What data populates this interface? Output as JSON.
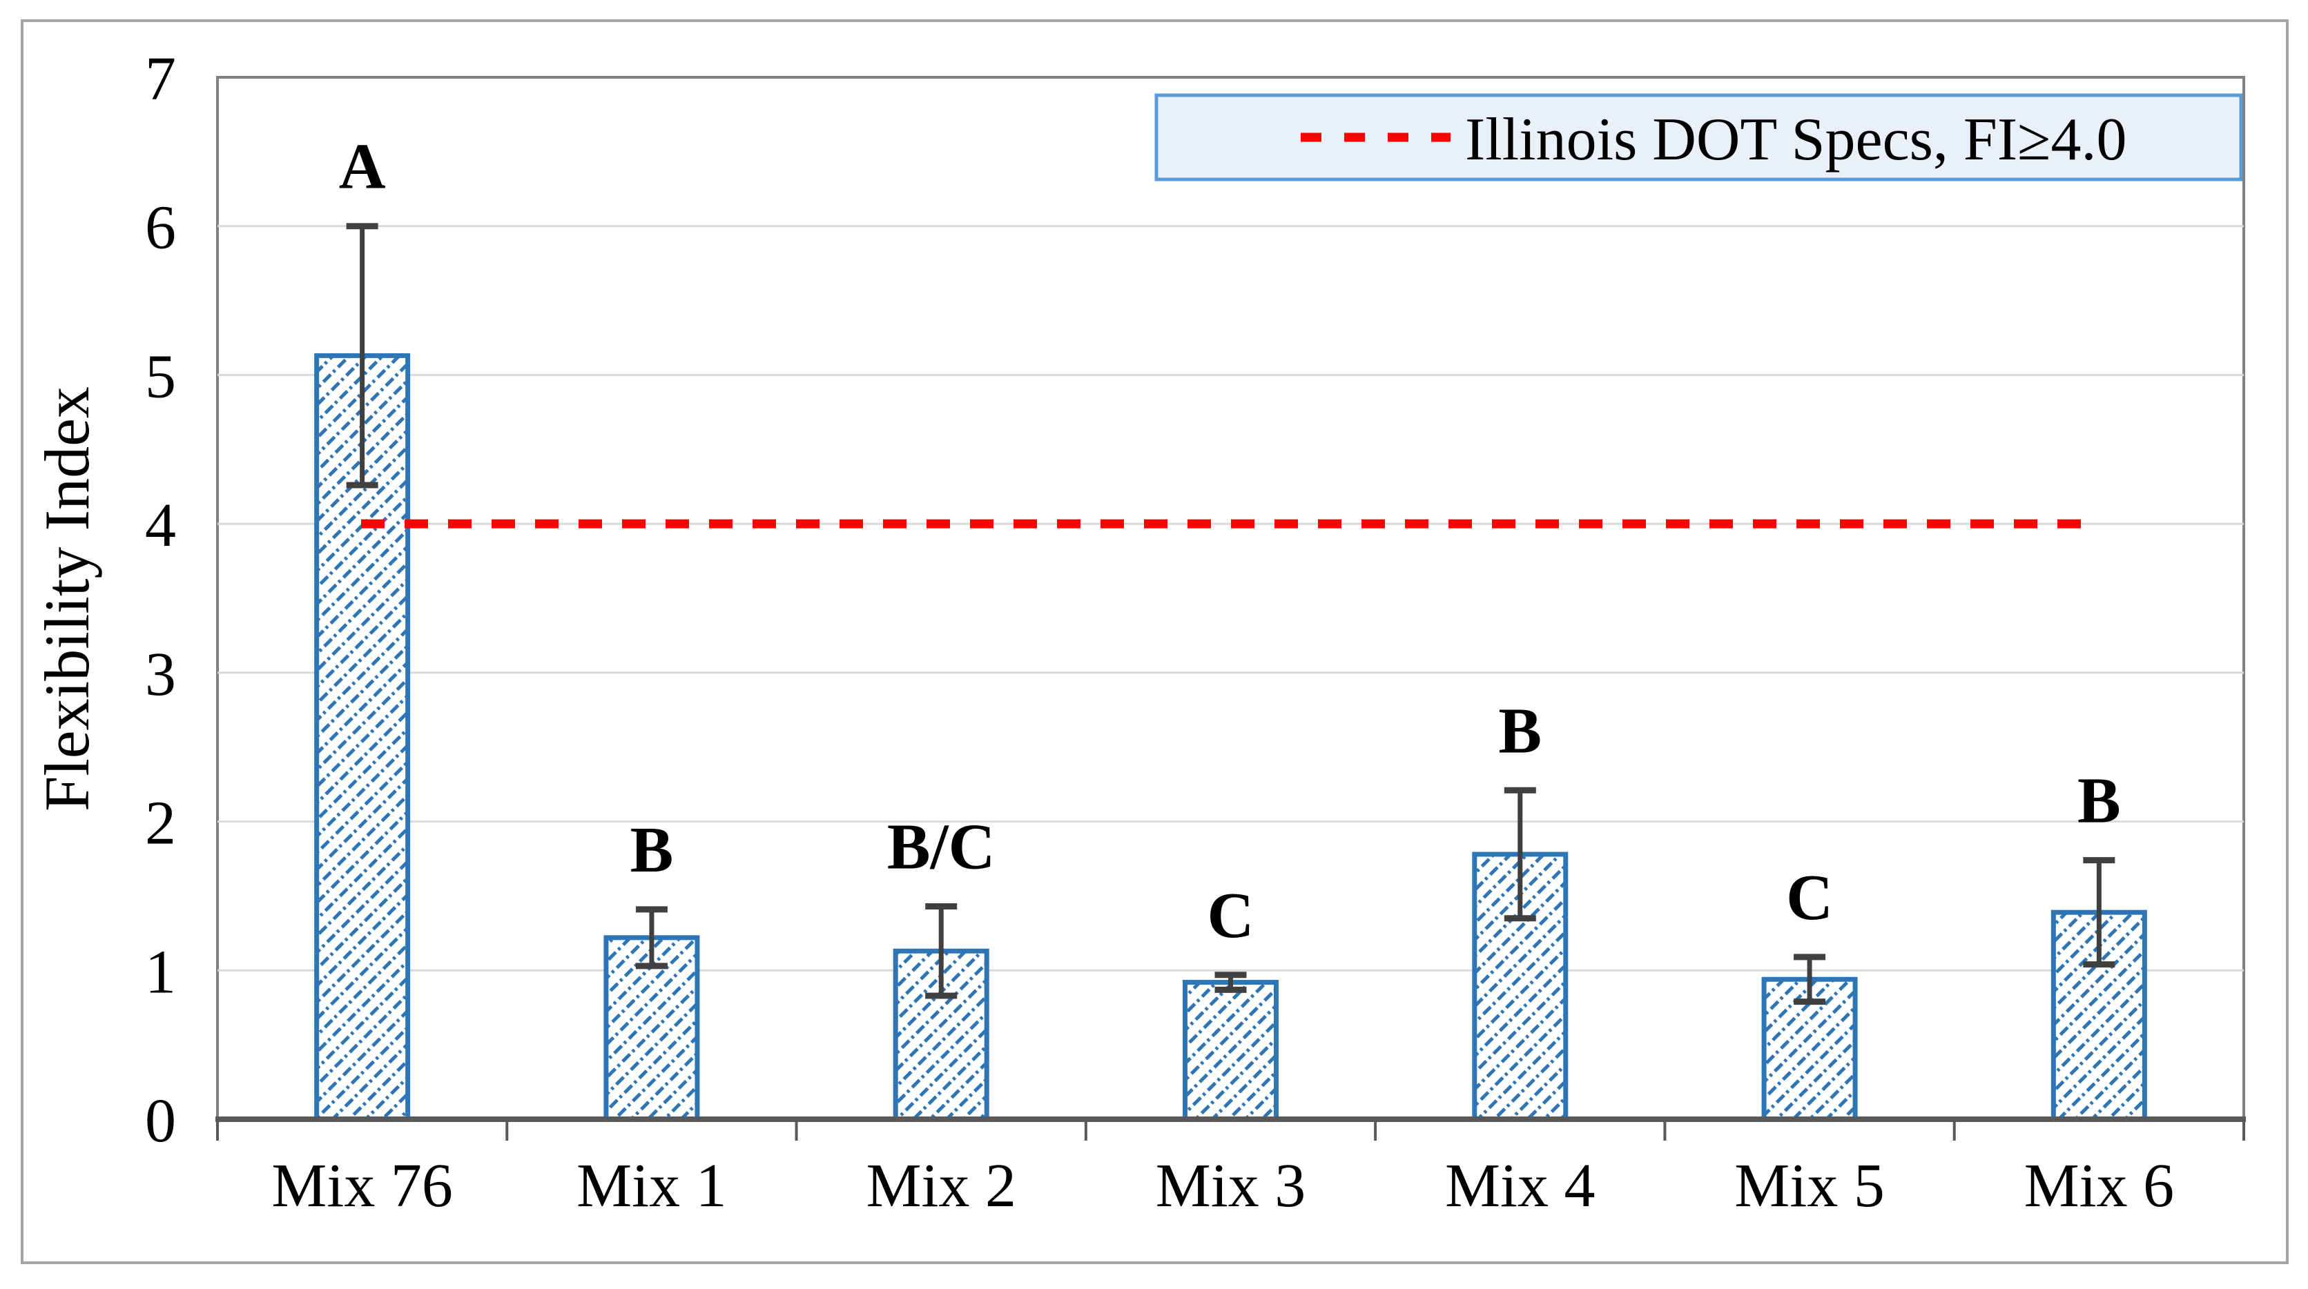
{
  "chart_data": {
    "type": "bar",
    "title": "",
    "ylabel": "Flexibility Index",
    "xlabel": "",
    "categories": [
      "Mix 76",
      "Mix 1",
      "Mix 2",
      "Mix 3",
      "Mix 4",
      "Mix 5",
      "Mix 6"
    ],
    "values": [
      5.13,
      1.22,
      1.13,
      0.92,
      1.78,
      0.94,
      1.39
    ],
    "error_bars": [
      0.87,
      0.19,
      0.3,
      0.05,
      0.43,
      0.15,
      0.35
    ],
    "group_letters": [
      "A",
      "B",
      "B/C",
      "C",
      "B",
      "C",
      "B"
    ],
    "ylim": [
      0,
      7
    ],
    "yticks": [
      0,
      1,
      2,
      3,
      4,
      5,
      6,
      7
    ],
    "grid": "horizontal",
    "legend": {
      "label": "Illinois DOT Specs, FI≥4.0",
      "position": "top-right",
      "line_style": "dashed"
    },
    "reference_line": {
      "value": 4.0,
      "style": "dashed",
      "color": "#FF0000"
    },
    "colors": {
      "bar_border": "#2E75B6",
      "bar_hatch": "#2E75B6",
      "bar_fill": "#FFFFFF",
      "error_bar": "#404040",
      "gridline": "#D9D9D9",
      "plot_border": "#808080",
      "axis_line": "#595959",
      "reference": "#FF0000",
      "legend_fill": "#E9F0FA",
      "legend_border": "#5B9BD5",
      "figure_border": "#A6A6A6",
      "text": "#000000"
    }
  }
}
